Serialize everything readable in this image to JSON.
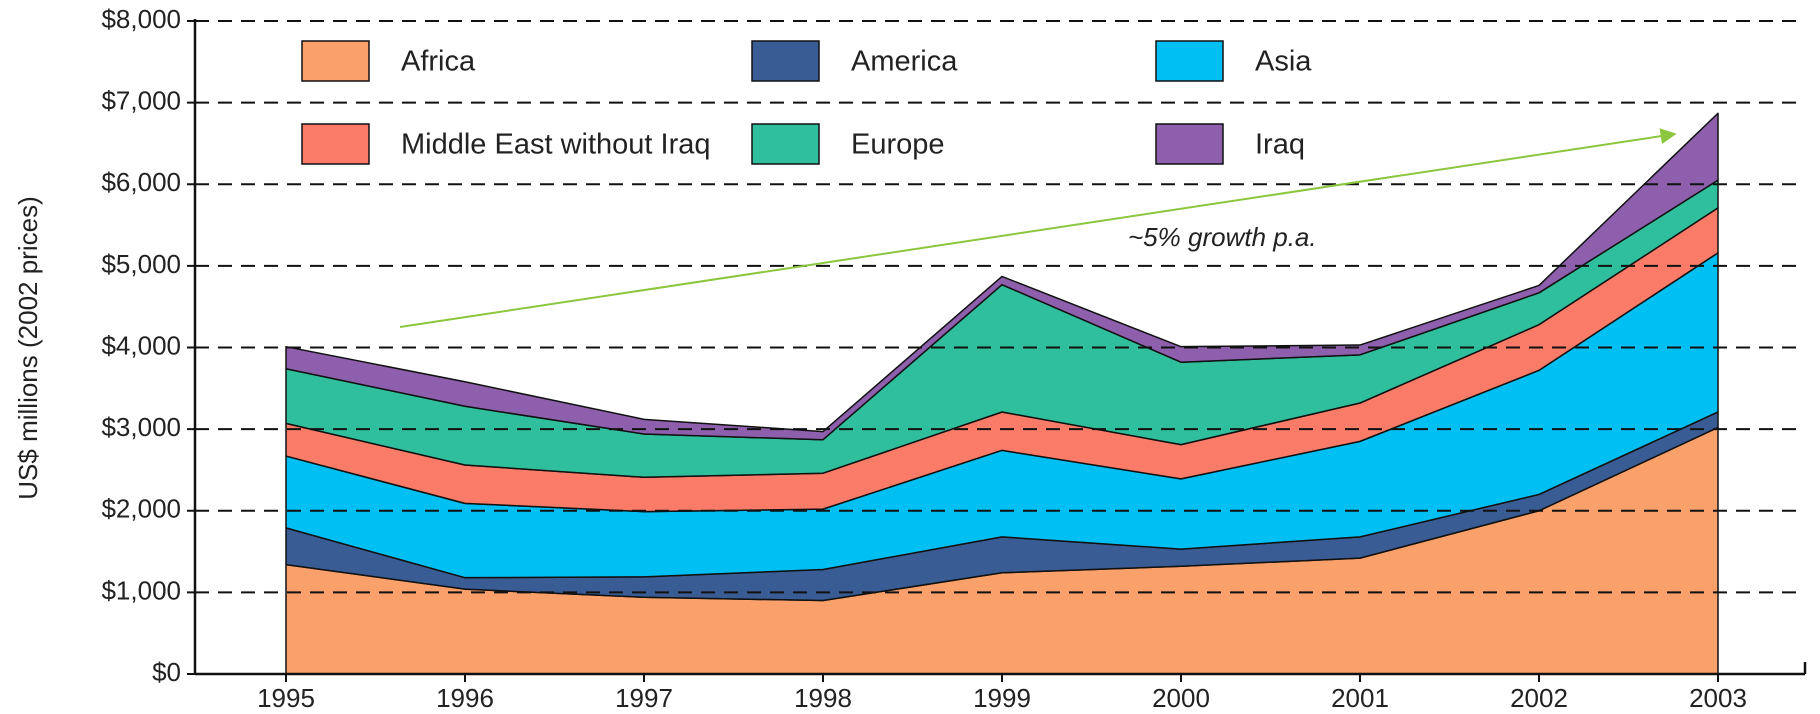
{
  "chart_data": {
    "type": "stacked_area",
    "y_axis_label": "US$ millions (2002 prices)",
    "annotation": "~5% growth p.a.",
    "categories": [
      "1995",
      "1996",
      "1997",
      "1998",
      "1999",
      "2000",
      "2001",
      "2002",
      "2003"
    ],
    "series": [
      {
        "name": "Africa",
        "color": "#f9a06b",
        "values": [
          1340,
          1040,
          940,
          900,
          1240,
          1320,
          1420,
          2000,
          3020
        ]
      },
      {
        "name": "America",
        "color": "#3a5c94",
        "values": [
          450,
          140,
          250,
          380,
          440,
          210,
          260,
          200,
          190
        ]
      },
      {
        "name": "Asia",
        "color": "#00bff3",
        "values": [
          880,
          910,
          800,
          740,
          1060,
          860,
          1170,
          1520,
          1950
        ]
      },
      {
        "name": "Middle East without Iraq",
        "color": "#f97b68",
        "values": [
          400,
          470,
          420,
          440,
          470,
          420,
          470,
          560,
          550
        ]
      },
      {
        "name": "Europe",
        "color": "#30bf9c",
        "values": [
          670,
          720,
          530,
          410,
          1560,
          1010,
          590,
          390,
          340
        ]
      },
      {
        "name": "Iraq",
        "color": "#8e5fad",
        "values": [
          270,
          300,
          180,
          100,
          100,
          190,
          120,
          90,
          820
        ]
      }
    ],
    "ylim": [
      0,
      8000
    ],
    "yticks": [
      {
        "value": 0,
        "label": "$0"
      },
      {
        "value": 1000,
        "label": "$1,000"
      },
      {
        "value": 2000,
        "label": "$2,000"
      },
      {
        "value": 3000,
        "label": "$3,000"
      },
      {
        "value": 4000,
        "label": "$4,000"
      },
      {
        "value": 5000,
        "label": "$5,000"
      },
      {
        "value": 6000,
        "label": "$6,000"
      },
      {
        "value": 7000,
        "label": "$7,000"
      },
      {
        "value": 8000,
        "label": "$8,000"
      }
    ],
    "grid": true
  }
}
